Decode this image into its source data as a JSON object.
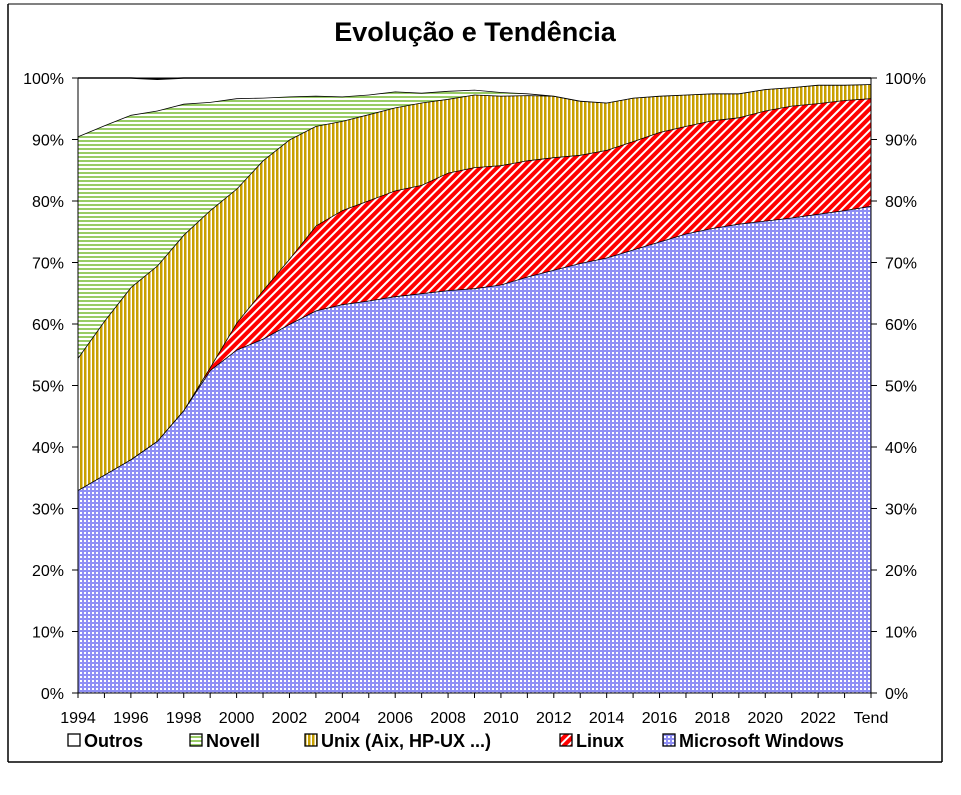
{
  "chart_data": {
    "type": "area",
    "stacked": true,
    "normalized_percent": true,
    "title": "Evolução e Tendência",
    "xlabel": "",
    "ylabel": "",
    "ylim": [
      0,
      100
    ],
    "y_ticks": [
      "0%",
      "10%",
      "20%",
      "30%",
      "40%",
      "50%",
      "60%",
      "70%",
      "80%",
      "90%",
      "100%"
    ],
    "x": [
      "1994",
      "1995",
      "1996",
      "1997",
      "1998",
      "1999",
      "2000",
      "2001",
      "2002",
      "2003",
      "2004",
      "2005",
      "2006",
      "2007",
      "2008",
      "2009",
      "2010",
      "2011",
      "2012",
      "2013",
      "2014",
      "2015",
      "2016",
      "2017",
      "2018",
      "2019",
      "2020",
      "2021",
      "2022",
      "2023",
      "Tend"
    ],
    "x_tick_labels": [
      "1994",
      "1996",
      "1998",
      "2000",
      "2002",
      "2004",
      "2006",
      "2008",
      "2010",
      "2012",
      "2014",
      "2016",
      "2018",
      "2020",
      "2022",
      "Tend"
    ],
    "grid": false,
    "legend_position": "bottom",
    "series": [
      {
        "name": "Microsoft Windows",
        "color": "#9999ff",
        "pattern": "dots",
        "values": [
          33,
          35.5,
          38,
          41,
          46,
          52.5,
          55.8,
          57.6,
          60,
          62.2,
          63.2,
          63.8,
          64.5,
          65,
          65.5,
          65.8,
          66.4,
          67.7,
          68.8,
          69.9,
          70.8,
          72.1,
          73.4,
          74.7,
          75.6,
          76.3,
          76.8,
          77.3,
          77.9,
          78.5,
          79.2
        ]
      },
      {
        "name": "Linux",
        "color": "#ff0000",
        "pattern": "diagonal",
        "values": [
          0,
          0,
          0,
          0,
          0,
          0.5,
          4.4,
          7.9,
          10.6,
          13.8,
          15.3,
          16.3,
          17.2,
          17.6,
          19.1,
          19.7,
          19.4,
          18.9,
          18.3,
          17.6,
          17.5,
          17.6,
          17.8,
          17.5,
          17.5,
          17.3,
          17.9,
          18.2,
          18,
          17.9,
          17.5
        ]
      },
      {
        "name": "Unix (Aix, HP-UX ...)",
        "color": "#ffcc00",
        "pattern": "vertical",
        "values": [
          21.5,
          25,
          28,
          28.5,
          28.5,
          25.5,
          21.8,
          21.1,
          19.4,
          16.2,
          14.5,
          14,
          13.5,
          13.4,
          12,
          11.8,
          11.3,
          10.6,
          10,
          8.8,
          7.7,
          7.1,
          5.9,
          5.1,
          4.4,
          3.9,
          3.5,
          3,
          3,
          2.5,
          2.3
        ]
      },
      {
        "name": "Novell",
        "color": "#99cc66",
        "pattern": "horizontal",
        "values": [
          36,
          31.8,
          28,
          25.2,
          21.3,
          17.6,
          14.7,
          10.2,
          7,
          4.9,
          4,
          3.2,
          2.6,
          1.6,
          1.3,
          0.8,
          0.6,
          0.3,
          0,
          0,
          0,
          0,
          0,
          0,
          0,
          0,
          0,
          0,
          0,
          0,
          0
        ]
      },
      {
        "name": "Outros",
        "color": "#ffffff",
        "pattern": "none",
        "values": [
          9.5,
          7.7,
          6,
          5.1,
          4.2,
          3.9,
          3.3,
          3.2,
          3,
          2.9,
          3,
          2.7,
          2.2,
          2.4,
          2.1,
          1.9,
          2.3,
          2.5,
          2.9,
          3.7,
          4,
          3.2,
          2.9,
          2.7,
          2.5,
          2.5,
          1.8,
          1.5,
          1.1,
          1.1,
          1
        ]
      }
    ],
    "legend_order": [
      "Outros",
      "Novell",
      "Unix (Aix, HP-UX ...)",
      "Linux",
      "Microsoft Windows"
    ]
  }
}
